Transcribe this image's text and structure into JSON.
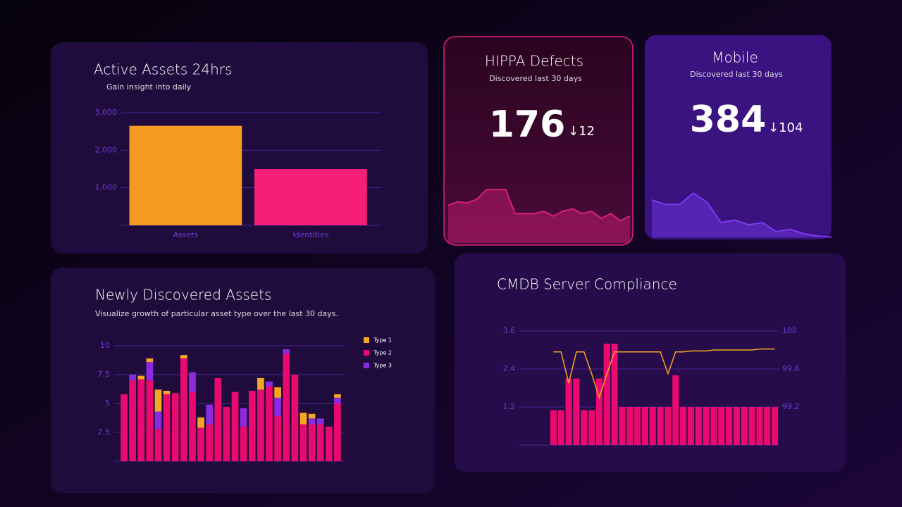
{
  "chart_data": [
    {
      "type": "bar",
      "title": "Active Assets 24hrs",
      "subtitle": "Gain insight into daily",
      "categories": [
        "Assets",
        "Identities"
      ],
      "values": [
        2650,
        1500
      ],
      "colors": [
        "#f79a22",
        "#f51f78"
      ],
      "ylim": [
        0,
        3000
      ],
      "yticks": [
        {
          "value": 1000,
          "label": "1,000"
        },
        {
          "value": 2000,
          "label": "2,000"
        },
        {
          "value": 3000,
          "label": "3,000"
        }
      ],
      "grid": true
    },
    {
      "type": "line",
      "title": "HIPPA Defects",
      "subtitle": "Discovered last 30 days",
      "kpi": 176,
      "delta": "↓12",
      "values": [
        55,
        58,
        57,
        60,
        68,
        68,
        68,
        48,
        48,
        48,
        50,
        46,
        50,
        52,
        48,
        50,
        44,
        48,
        42,
        46
      ],
      "color": "#d8207a",
      "ylim": [
        0,
        100
      ]
    },
    {
      "type": "line",
      "title": "Mobile",
      "subtitle": "Discovered last 30 days",
      "kpi": 384,
      "delta": "↓104",
      "values": [
        60,
        56,
        56,
        66,
        58,
        40,
        42,
        38,
        40,
        32,
        34,
        30,
        28,
        27
      ],
      "color": "#7a3af0",
      "ylim": [
        0,
        100
      ]
    },
    {
      "type": "stacked_bar",
      "title": "Newly Discovered Assets",
      "subtitle": "Visualize growth of particular asset type over the last 30 days.",
      "series": [
        {
          "name": "Type 1",
          "color": "#f5a623",
          "values": [
            0,
            0,
            0.3,
            0.3,
            1.9,
            0.3,
            0,
            0.3,
            0,
            0.9,
            0,
            0,
            0,
            0,
            0,
            0,
            1.0,
            0,
            0.9,
            0,
            0,
            1.0,
            0.4,
            0,
            0,
            0.3
          ]
        },
        {
          "name": "Type 2",
          "color": "#ea0a6f",
          "values": [
            5.8,
            7.0,
            7.1,
            7.0,
            2.8,
            5.8,
            5.9,
            8.9,
            6.0,
            2.9,
            3.2,
            7.2,
            4.7,
            6.0,
            3.0,
            6.1,
            6.2,
            6.5,
            3.9,
            9.3,
            7.5,
            3.2,
            3.2,
            3.2,
            3.0,
            5.0
          ]
        },
        {
          "name": "Type 3",
          "color": "#8a2be2",
          "values": [
            0,
            0.5,
            0,
            1.6,
            1.5,
            0,
            0,
            0,
            1.7,
            0,
            1.7,
            0,
            0,
            0,
            1.6,
            0,
            0,
            0.4,
            1.6,
            0.4,
            0,
            0,
            0.5,
            0.5,
            0,
            0.5
          ]
        }
      ],
      "ylim": [
        0,
        10
      ],
      "yticks": [
        2.5,
        5,
        7.5,
        10
      ],
      "grid": true
    },
    {
      "type": "bar_line",
      "title": "CMDB Server Compliance",
      "series": [
        {
          "color": "#ea0a6f",
          "values": [
            1.1,
            1.1,
            2.1,
            2.1,
            1.1,
            1.1,
            2.1,
            3.2,
            3.2,
            1.2,
            1.2,
            1.2,
            1.2,
            1.2,
            1.2,
            1.2,
            2.2,
            1.2,
            1.2,
            1.2,
            1.2,
            1.2,
            1.2,
            1.2,
            1.2,
            1.2,
            1.2,
            1.2,
            1.2,
            1.2
          ]
        },
        {
          "color": "#f5a623",
          "axis": "y2",
          "values": [
            99.78,
            99.78,
            99.45,
            99.78,
            99.78,
            99.55,
            99.3,
            99.55,
            99.78,
            99.78,
            99.78,
            99.78,
            99.78,
            99.78,
            99.78,
            99.55,
            99.78,
            99.78,
            99.79,
            99.79,
            99.79,
            99.8,
            99.8,
            99.8,
            99.8,
            99.8,
            99.8,
            99.81,
            99.81,
            99.81
          ]
        }
      ],
      "ylim": [
        0,
        3.6
      ],
      "yticks": [
        1.2,
        2.4,
        3.6
      ],
      "y2lim": [
        98.8,
        100
      ],
      "y2ticks": [
        99.2,
        99.6,
        100
      ],
      "grid": true
    }
  ]
}
